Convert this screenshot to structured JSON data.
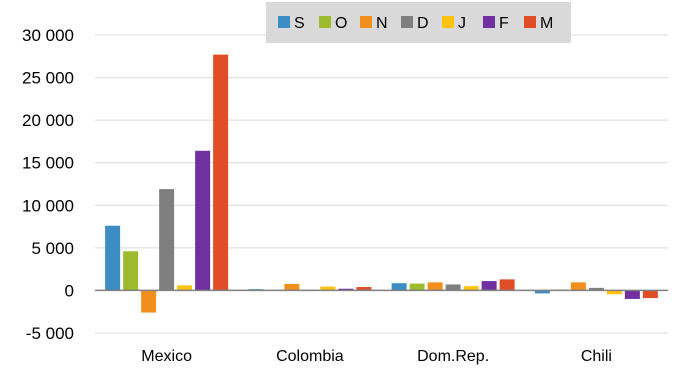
{
  "chart_data": {
    "type": "bar",
    "categories": [
      "Mexico",
      "Colombia",
      "Dom.Rep.",
      "Chili"
    ],
    "y_ticks": [
      "-5 000",
      "0",
      "5 000",
      "10 000",
      "15 000",
      "20 000",
      "25 000",
      "30 000"
    ],
    "ylim": [
      -5000,
      30000
    ],
    "grid": true,
    "legend_position": "top-right",
    "series": [
      {
        "name": "S",
        "color": "#3B8DC4",
        "values": [
          7600,
          150,
          850,
          -350
        ]
      },
      {
        "name": "O",
        "color": "#9DBB2D",
        "values": [
          4600,
          80,
          800,
          100
        ]
      },
      {
        "name": "N",
        "color": "#F28E1C",
        "values": [
          -2600,
          750,
          950,
          950
        ]
      },
      {
        "name": "D",
        "color": "#7F7F7F",
        "values": [
          11900,
          80,
          700,
          300
        ]
      },
      {
        "name": "J",
        "color": "#FFC20E",
        "values": [
          600,
          450,
          500,
          -450
        ]
      },
      {
        "name": "F",
        "color": "#7030A0",
        "values": [
          16400,
          200,
          1100,
          -1000
        ]
      },
      {
        "name": "M",
        "color": "#E04E27",
        "values": [
          27700,
          400,
          1300,
          -900
        ]
      }
    ]
  }
}
